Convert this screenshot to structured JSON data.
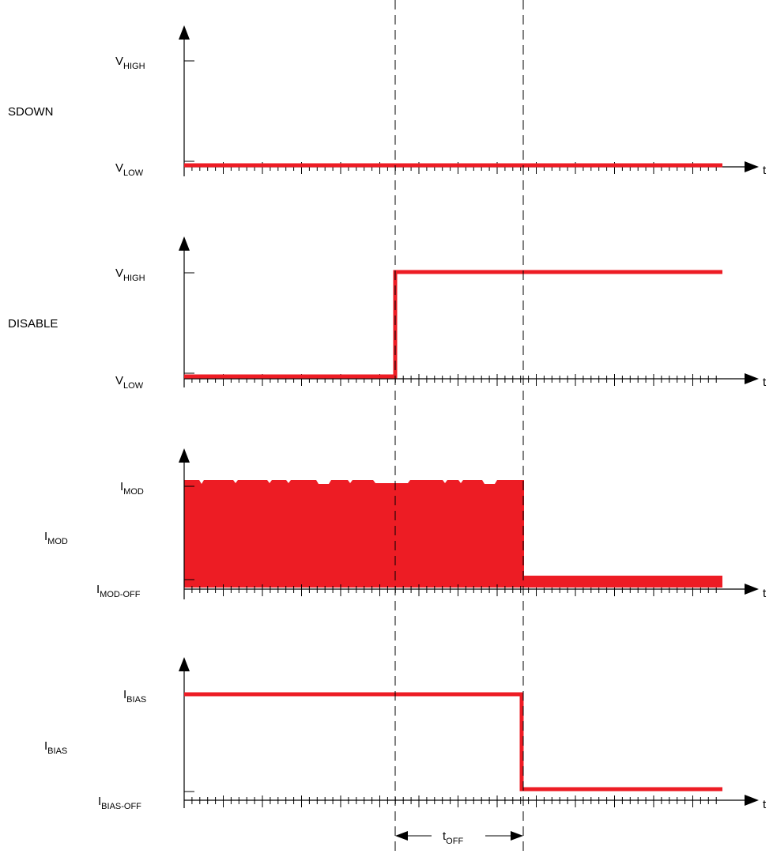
{
  "colors": {
    "signal": "#ED1C24",
    "axis": "#000000"
  },
  "time_axis_symbol": "t",
  "panels": [
    {
      "name": "SDOWN",
      "label": {
        "main": "SDOWN",
        "sub": ""
      },
      "high_level": {
        "main": "V",
        "sub": "HIGH"
      },
      "low_level": {
        "main": "V",
        "sub": "LOW"
      },
      "signal": "stays low for the whole time span"
    },
    {
      "name": "DISABLE",
      "label": {
        "main": "DISABLE",
        "sub": ""
      },
      "high_level": {
        "main": "V",
        "sub": "HIGH"
      },
      "low_level": {
        "main": "V",
        "sub": "LOW"
      },
      "signal": "low, then steps to high at the first marker"
    },
    {
      "name": "IMOD",
      "label": {
        "main": "I",
        "sub": "MOD"
      },
      "high_level": {
        "main": "I",
        "sub": "MOD"
      },
      "low_level": {
        "main": "I",
        "sub": "MOD-OFF"
      },
      "signal": "modulated between high and low, drops to low at the second marker"
    },
    {
      "name": "IBIAS",
      "label": {
        "main": "I",
        "sub": "BIAS"
      },
      "high_level": {
        "main": "I",
        "sub": "BIAS"
      },
      "low_level": {
        "main": "I",
        "sub": "BIAS-OFF"
      },
      "signal": "high, then steps to low at the second marker"
    }
  ],
  "interval": {
    "main": "t",
    "sub": "OFF"
  }
}
